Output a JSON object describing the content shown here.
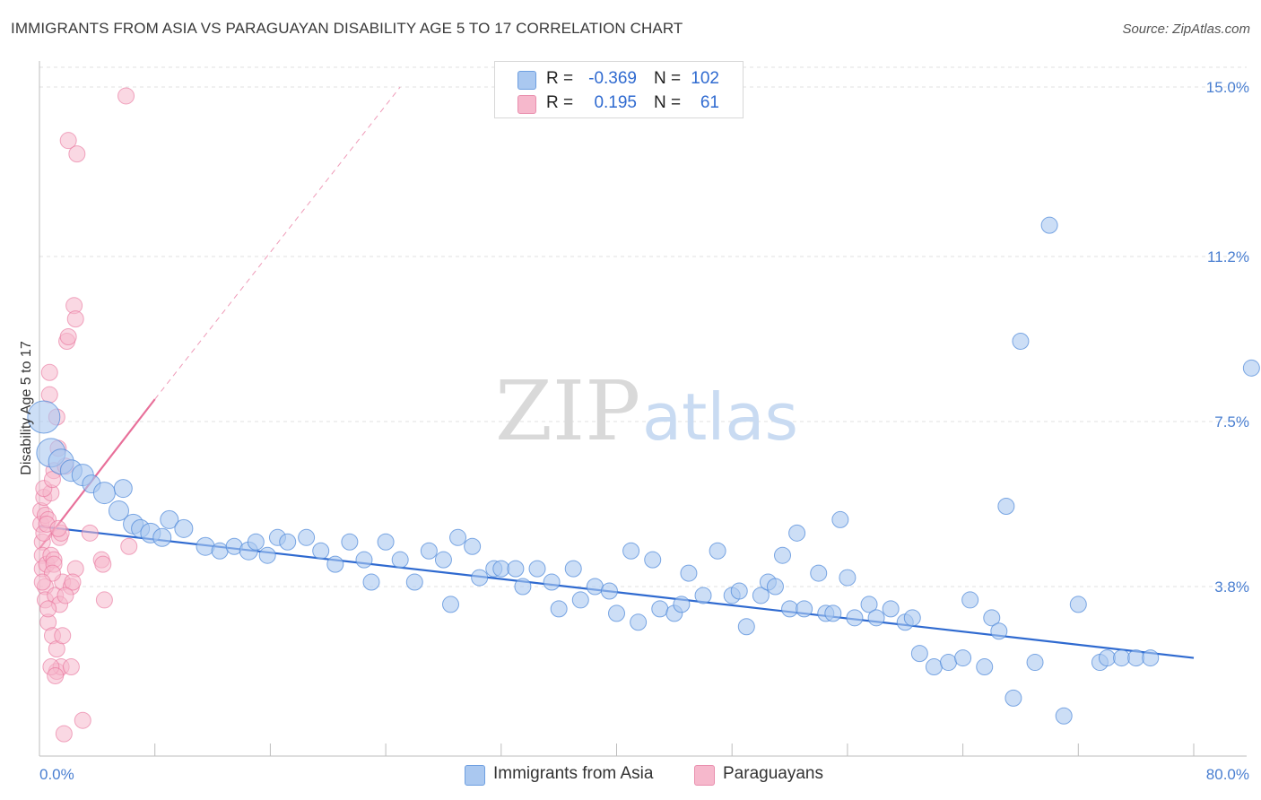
{
  "title": "IMMIGRANTS FROM ASIA VS PARAGUAYAN DISABILITY AGE 5 TO 17 CORRELATION CHART",
  "source": "Source: ZipAtlas.com",
  "watermark": {
    "zip": "ZIP",
    "atlas": "atlas"
  },
  "legend": {
    "rows": [
      {
        "r_label": "R =",
        "r_value": "-0.369",
        "n_label": "N =",
        "n_value": "102",
        "color": "#aac8f0"
      },
      {
        "r_label": "R =",
        "r_value": "0.195",
        "n_label": "N =",
        "n_value": "61",
        "color": "#f6b8cc"
      }
    ]
  },
  "bottom_legend": [
    {
      "label": "Immigrants from Asia",
      "color": "#aac8f0"
    },
    {
      "label": "Paraguayans",
      "color": "#f6b8cc"
    }
  ],
  "chart_data": {
    "type": "scatter",
    "title": "IMMIGRANTS FROM ASIA VS PARAGUAYAN DISABILITY AGE 5 TO 17 CORRELATION CHART",
    "xlabel": "",
    "ylabel": "Disability Age 5 to 17",
    "xlim": [
      0,
      80
    ],
    "ylim": [
      0,
      15.5
    ],
    "x_tick_labels": [
      "0.0%",
      "80.0%"
    ],
    "y_tick_labels": [
      "3.8%",
      "7.5%",
      "11.2%",
      "15.0%"
    ],
    "y_ticks": [
      3.8,
      7.5,
      11.2,
      15.0
    ],
    "grid": true,
    "legend_position": "top-center",
    "colors": {
      "asia": "#4a86d8",
      "asia_fill": "#aac8f0",
      "paraguayan": "#e8709a",
      "paraguayan_fill": "#f6b8cc",
      "asia_line": "#2f6ad0",
      "paraguayan_line": "#e8709a"
    },
    "series": [
      {
        "name": "Immigrants from Asia",
        "trend": {
          "x": [
            0,
            80
          ],
          "y": [
            5.15,
            2.2
          ]
        },
        "points": [
          [
            0.3,
            7.6,
            18
          ],
          [
            0.8,
            6.8,
            16
          ],
          [
            1.5,
            6.6,
            14
          ],
          [
            2.2,
            6.4,
            12
          ],
          [
            3.0,
            6.3,
            12
          ],
          [
            3.6,
            6.1,
            10
          ],
          [
            4.5,
            5.9,
            12
          ],
          [
            5.5,
            5.5,
            11
          ],
          [
            6.5,
            5.2,
            11
          ],
          [
            5.8,
            6.0,
            10
          ],
          [
            7.0,
            5.1,
            10
          ],
          [
            7.7,
            5.0,
            11
          ],
          [
            8.5,
            4.9,
            10
          ],
          [
            9.0,
            5.3,
            10
          ],
          [
            10.0,
            5.1,
            10
          ],
          [
            11.5,
            4.7,
            10
          ],
          [
            12.5,
            4.6,
            9
          ],
          [
            13.5,
            4.7,
            9
          ],
          [
            14.5,
            4.6,
            10
          ],
          [
            15.0,
            4.8,
            9
          ],
          [
            15.8,
            4.5,
            9
          ],
          [
            16.5,
            4.9,
            9
          ],
          [
            17.2,
            4.8,
            9
          ],
          [
            18.5,
            4.9,
            9
          ],
          [
            19.5,
            4.6,
            9
          ],
          [
            20.5,
            4.3,
            9
          ],
          [
            21.5,
            4.8,
            9
          ],
          [
            22.5,
            4.4,
            9
          ],
          [
            23.0,
            3.9,
            9
          ],
          [
            24.0,
            4.8,
            9
          ],
          [
            25.0,
            4.4,
            9
          ],
          [
            26.0,
            3.9,
            9
          ],
          [
            27.0,
            4.6,
            9
          ],
          [
            28.0,
            4.4,
            9
          ],
          [
            28.5,
            3.4,
            9
          ],
          [
            29.0,
            4.9,
            9
          ],
          [
            30.0,
            4.7,
            9
          ],
          [
            30.5,
            4.0,
            9
          ],
          [
            31.5,
            4.2,
            9
          ],
          [
            32.0,
            4.2,
            9
          ],
          [
            33.0,
            4.2,
            9
          ],
          [
            33.5,
            3.8,
            9
          ],
          [
            34.5,
            4.2,
            9
          ],
          [
            35.5,
            3.9,
            9
          ],
          [
            36.0,
            3.3,
            9
          ],
          [
            37.0,
            4.2,
            9
          ],
          [
            37.5,
            3.5,
            9
          ],
          [
            38.5,
            3.8,
            9
          ],
          [
            39.5,
            3.7,
            9
          ],
          [
            40.0,
            3.2,
            9
          ],
          [
            41.0,
            4.6,
            9
          ],
          [
            41.5,
            3.0,
            9
          ],
          [
            42.5,
            4.4,
            9
          ],
          [
            43.0,
            3.3,
            9
          ],
          [
            44.0,
            3.2,
            9
          ],
          [
            44.5,
            3.4,
            9
          ],
          [
            45.0,
            4.1,
            9
          ],
          [
            46.0,
            3.6,
            9
          ],
          [
            47.0,
            4.6,
            9
          ],
          [
            48.0,
            3.6,
            9
          ],
          [
            48.5,
            3.7,
            9
          ],
          [
            49.0,
            2.9,
            9
          ],
          [
            50.0,
            3.6,
            9
          ],
          [
            50.5,
            3.9,
            9
          ],
          [
            51.0,
            3.8,
            9
          ],
          [
            51.5,
            4.5,
            9
          ],
          [
            52.0,
            3.3,
            9
          ],
          [
            52.5,
            5.0,
            9
          ],
          [
            53.0,
            3.3,
            9
          ],
          [
            54.0,
            4.1,
            9
          ],
          [
            54.5,
            3.2,
            9
          ],
          [
            55.0,
            3.2,
            9
          ],
          [
            55.5,
            5.3,
            9
          ],
          [
            56.0,
            4.0,
            9
          ],
          [
            56.5,
            3.1,
            9
          ],
          [
            57.5,
            3.4,
            9
          ],
          [
            58.0,
            3.1,
            9
          ],
          [
            59.0,
            3.3,
            9
          ],
          [
            60.0,
            3.0,
            9
          ],
          [
            60.5,
            3.1,
            9
          ],
          [
            61.0,
            2.3,
            9
          ],
          [
            62.0,
            2.0,
            9
          ],
          [
            63.0,
            2.1,
            9
          ],
          [
            64.0,
            2.2,
            9
          ],
          [
            64.5,
            3.5,
            9
          ],
          [
            65.5,
            2.0,
            9
          ],
          [
            66.0,
            3.1,
            9
          ],
          [
            66.5,
            2.8,
            9
          ],
          [
            67.0,
            5.6,
            9
          ],
          [
            67.5,
            1.3,
            9
          ],
          [
            68.0,
            9.3,
            9
          ],
          [
            69.0,
            2.1,
            9
          ],
          [
            70.0,
            11.9,
            9
          ],
          [
            71.0,
            0.9,
            9
          ],
          [
            72.0,
            3.4,
            9
          ],
          [
            73.5,
            2.1,
            9
          ],
          [
            74.0,
            2.2,
            9
          ],
          [
            75.0,
            2.2,
            9
          ],
          [
            76.0,
            2.2,
            9
          ],
          [
            77.0,
            2.2,
            9
          ],
          [
            84.0,
            8.7,
            9
          ]
        ]
      },
      {
        "name": "Paraguayans",
        "trend": {
          "x": [
            0,
            8
          ],
          "y": [
            4.65,
            8.0
          ]
        },
        "trend_extended": {
          "x": [
            8,
            25
          ],
          "y": [
            8.0,
            15.0
          ]
        },
        "points": [
          [
            0.1,
            5.5,
            9
          ],
          [
            0.1,
            5.2,
            9
          ],
          [
            0.2,
            4.8,
            9
          ],
          [
            0.2,
            4.5,
            9
          ],
          [
            0.2,
            4.2,
            9
          ],
          [
            0.3,
            5.0,
            9
          ],
          [
            0.3,
            5.8,
            9
          ],
          [
            0.4,
            3.8,
            9
          ],
          [
            0.4,
            3.5,
            9
          ],
          [
            0.4,
            5.4,
            9
          ],
          [
            0.5,
            4.3,
            9
          ],
          [
            0.6,
            3.0,
            9
          ],
          [
            0.6,
            5.3,
            9
          ],
          [
            0.7,
            8.1,
            9
          ],
          [
            0.7,
            8.6,
            9
          ],
          [
            0.8,
            4.5,
            9
          ],
          [
            0.8,
            5.9,
            9
          ],
          [
            0.9,
            2.7,
            9
          ],
          [
            1.0,
            4.4,
            9
          ],
          [
            1.0,
            6.4,
            9
          ],
          [
            1.1,
            3.6,
            9
          ],
          [
            1.2,
            2.4,
            9
          ],
          [
            1.2,
            1.9,
            9
          ],
          [
            1.3,
            6.9,
            9
          ],
          [
            1.4,
            4.9,
            9
          ],
          [
            1.4,
            3.4,
            9
          ],
          [
            1.5,
            2.0,
            9
          ],
          [
            1.6,
            3.9,
            9
          ],
          [
            1.6,
            2.7,
            9
          ],
          [
            1.7,
            0.5,
            9
          ],
          [
            1.8,
            6.5,
            9
          ],
          [
            1.9,
            9.3,
            9
          ],
          [
            2.0,
            9.4,
            9
          ],
          [
            2.0,
            13.8,
            9
          ],
          [
            2.2,
            3.8,
            9
          ],
          [
            2.4,
            10.1,
            9
          ],
          [
            2.5,
            4.2,
            9
          ],
          [
            2.5,
            9.8,
            9
          ],
          [
            2.6,
            13.5,
            9
          ],
          [
            3.0,
            0.8,
            9
          ],
          [
            3.5,
            5.0,
            9
          ],
          [
            4.3,
            4.4,
            9
          ],
          [
            4.5,
            3.5,
            9
          ],
          [
            6.2,
            4.7,
            9
          ],
          [
            6.0,
            14.8,
            9
          ],
          [
            2.2,
            2.0,
            9
          ],
          [
            1.0,
            4.3,
            9
          ],
          [
            0.5,
            5.2,
            9
          ],
          [
            0.3,
            6.0,
            9
          ],
          [
            1.2,
            7.6,
            9
          ],
          [
            2.3,
            3.9,
            9
          ],
          [
            1.5,
            5.0,
            9
          ],
          [
            0.6,
            3.3,
            9
          ],
          [
            0.8,
            2.0,
            9
          ],
          [
            1.1,
            1.8,
            9
          ],
          [
            0.9,
            4.1,
            9
          ],
          [
            1.3,
            5.1,
            9
          ],
          [
            0.2,
            3.9,
            9
          ],
          [
            1.8,
            3.6,
            9
          ],
          [
            4.4,
            4.3,
            9
          ],
          [
            0.9,
            6.2,
            9
          ]
        ]
      }
    ]
  }
}
